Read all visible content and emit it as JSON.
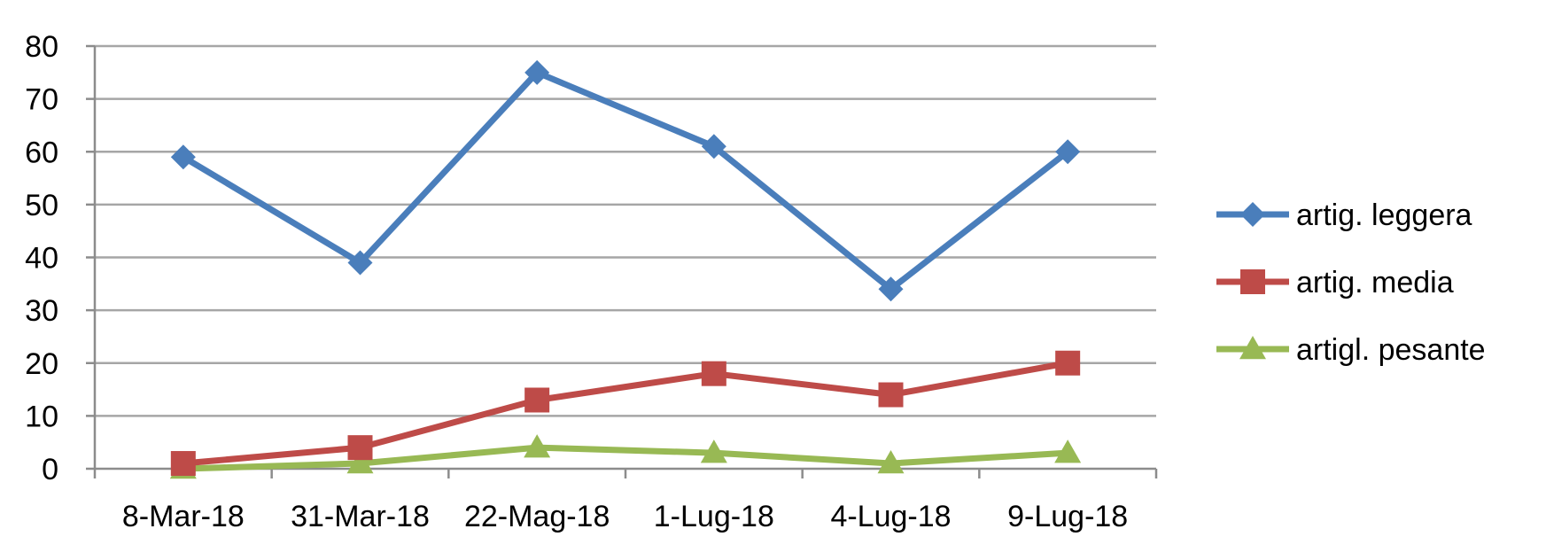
{
  "chart_data": {
    "type": "line",
    "categories": [
      "8-Mar-18",
      "31-Mar-18",
      "22-Mag-18",
      "1-Lug-18",
      "4-Lug-18",
      "9-Lug-18"
    ],
    "ylim": [
      0,
      80
    ],
    "yticks": [
      0,
      10,
      20,
      30,
      40,
      50,
      60,
      70,
      80
    ],
    "grid": true,
    "legend_position": "right",
    "title": "",
    "xlabel": "",
    "ylabel": "",
    "series": [
      {
        "name": "artig. leggera",
        "values": [
          59,
          39,
          75,
          61,
          34,
          60
        ],
        "color": "#4a7ebb",
        "marker": "diamond"
      },
      {
        "name": "artig. media",
        "values": [
          1,
          4,
          13,
          18,
          14,
          20
        ],
        "color": "#be4b48",
        "marker": "square"
      },
      {
        "name": "artigl. pesante",
        "values": [
          0,
          1,
          4,
          3,
          1,
          3
        ],
        "color": "#98b954",
        "marker": "triangle"
      }
    ]
  }
}
